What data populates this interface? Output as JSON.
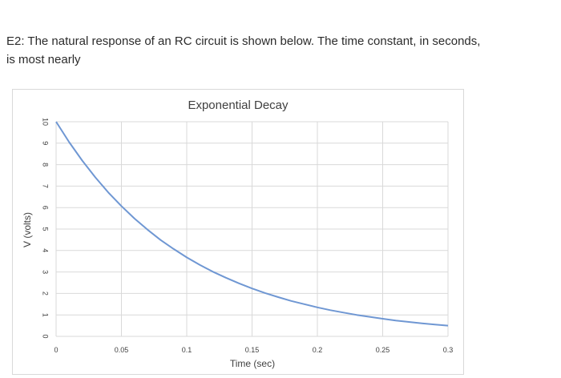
{
  "question": {
    "text": "E2: The natural response of an RC circuit is shown below.  The time constant, in seconds, is most nearly"
  },
  "chart_data": {
    "type": "line",
    "title": "Exponential Decay",
    "xlabel": "Time (sec)",
    "ylabel": "V (volts)",
    "xlim": [
      0,
      0.3
    ],
    "ylim": [
      0,
      10
    ],
    "x_ticks": [
      "0",
      "0.05",
      "0.1",
      "0.15",
      "0.2",
      "0.25",
      "0.3"
    ],
    "y_ticks": [
      "0",
      "1",
      "2",
      "3",
      "4",
      "5",
      "6",
      "7",
      "8",
      "9",
      "10"
    ],
    "grid": true,
    "series": [
      {
        "color": "#6f97d3",
        "x": [
          0,
          0.01,
          0.02,
          0.03,
          0.04,
          0.05,
          0.06,
          0.07,
          0.08,
          0.09,
          0.1,
          0.11,
          0.12,
          0.13,
          0.14,
          0.15,
          0.16,
          0.17,
          0.18,
          0.19,
          0.2,
          0.21,
          0.22,
          0.23,
          0.24,
          0.25,
          0.26,
          0.27,
          0.28,
          0.29,
          0.3
        ],
        "values": [
          10,
          9.05,
          8.19,
          7.41,
          6.7,
          6.07,
          5.49,
          4.97,
          4.49,
          4.07,
          3.68,
          3.33,
          3.01,
          2.73,
          2.47,
          2.23,
          2.02,
          1.83,
          1.65,
          1.5,
          1.35,
          1.22,
          1.11,
          1.0,
          0.91,
          0.82,
          0.74,
          0.67,
          0.61,
          0.55,
          0.5
        ]
      }
    ]
  }
}
